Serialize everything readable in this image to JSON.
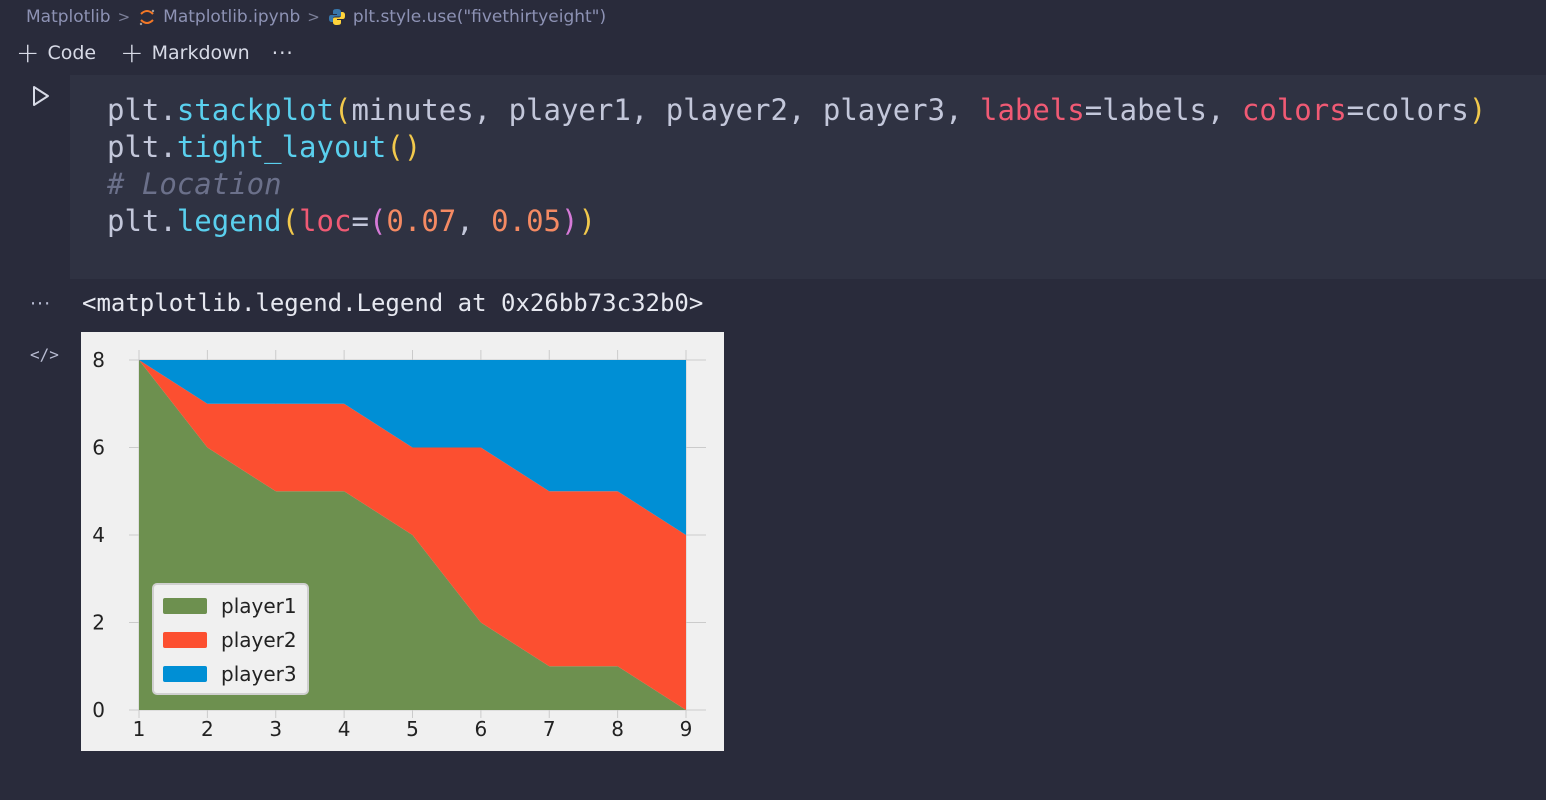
{
  "breadcrumb": {
    "folder": "Matplotlib",
    "notebook": "Matplotlib.ipynb",
    "cell": "plt.style.use(\"fivethirtyeight\")",
    "sep": ">"
  },
  "toolbar": {
    "code_label": "Code",
    "markdown_label": "Markdown",
    "more_label": "···",
    "plus": "+"
  },
  "code_lines": [
    [
      {
        "t": "plt.",
        "c": ""
      },
      {
        "t": "stackplot",
        "c": "kw-fn"
      },
      {
        "t": "(",
        "c": "kw-paren"
      },
      {
        "t": "minutes, player1, player2, player3, ",
        "c": ""
      },
      {
        "t": "labels",
        "c": "kw-arg"
      },
      {
        "t": "=labels, ",
        "c": ""
      },
      {
        "t": "colors",
        "c": "kw-arg"
      },
      {
        "t": "=colors",
        "c": ""
      },
      {
        "t": ")",
        "c": "kw-paren"
      }
    ],
    [
      {
        "t": "plt.",
        "c": ""
      },
      {
        "t": "tight_layout",
        "c": "kw-fn"
      },
      {
        "t": "()",
        "c": "kw-paren"
      }
    ],
    [
      {
        "t": "# Location",
        "c": "kw-comment"
      }
    ],
    [
      {
        "t": "plt.",
        "c": ""
      },
      {
        "t": "legend",
        "c": "kw-fn"
      },
      {
        "t": "(",
        "c": "kw-paren"
      },
      {
        "t": "loc",
        "c": "kw-arg"
      },
      {
        "t": "=",
        "c": ""
      },
      {
        "t": "(",
        "c": "kw-paren2"
      },
      {
        "t": "0.07",
        "c": "kw-num"
      },
      {
        "t": ", ",
        "c": ""
      },
      {
        "t": "0.05",
        "c": "kw-num"
      },
      {
        "t": ")",
        "c": "kw-paren2"
      },
      {
        "t": ")",
        "c": "kw-paren"
      }
    ]
  ],
  "output": {
    "more": "···",
    "text": "<matplotlib.legend.Legend at 0x26bb73c32b0>",
    "code_icon": "</>"
  },
  "colors": {
    "player1": "#6d904f",
    "player2": "#fc4f30",
    "player3": "#008fd5"
  },
  "chart_data": {
    "type": "area",
    "stacked": true,
    "x": [
      1,
      2,
      3,
      4,
      5,
      6,
      7,
      8,
      9
    ],
    "series": [
      {
        "name": "player1",
        "values": [
          8,
          6,
          5,
          5,
          4,
          2,
          1,
          1,
          0
        ]
      },
      {
        "name": "player2",
        "values": [
          0,
          1,
          2,
          2,
          2,
          4,
          4,
          4,
          4
        ]
      },
      {
        "name": "player3",
        "values": [
          0,
          1,
          1,
          1,
          2,
          2,
          3,
          3,
          4
        ]
      }
    ],
    "x_ticks": [
      "1",
      "2",
      "3",
      "4",
      "5",
      "6",
      "7",
      "8",
      "9"
    ],
    "y_ticks": [
      "0",
      "2",
      "4",
      "6",
      "8"
    ],
    "xlim": [
      1,
      9
    ],
    "ylim": [
      0,
      8
    ],
    "grid": true,
    "legend_position": "lower-left"
  }
}
